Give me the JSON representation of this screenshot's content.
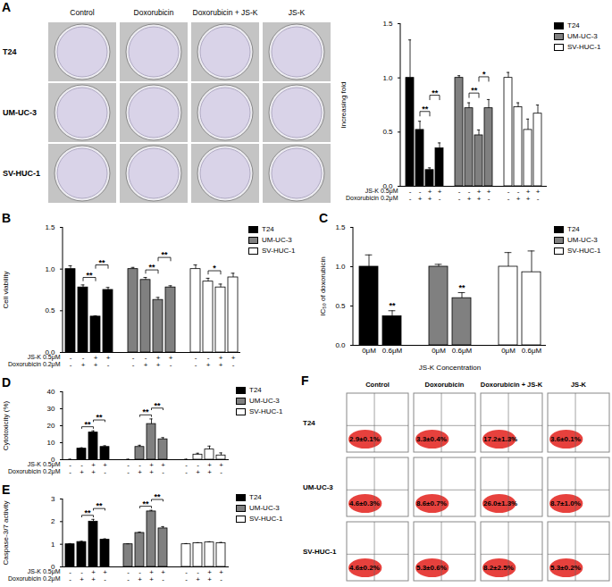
{
  "chart_data": [
    {
      "type": "bar",
      "y_label": "Increasing fold",
      "ylim": [
        0,
        1.5
      ],
      "yticks": [
        {
          "value": 0,
          "label": "0.0"
        },
        {
          "value": 0.5,
          "label": "0.5"
        },
        {
          "value": 1,
          "label": "1.0"
        },
        {
          "value": 1.5,
          "label": "1.5"
        }
      ],
      "legend": "right",
      "series": [
        {
          "name": "T24",
          "color": "#000000",
          "values": [
            1.0,
            0.52,
            0.15,
            0.35
          ],
          "errors": [
            0.35,
            0.08,
            0.02,
            0.05
          ]
        },
        {
          "name": "UM-UC-3",
          "color": "#808080",
          "values": [
            1.0,
            0.72,
            0.47,
            0.72
          ],
          "errors": [
            0.02,
            0.05,
            0.05,
            0.08
          ]
        },
        {
          "name": "SV-HUC-1",
          "color": "#ffffff",
          "values": [
            1.0,
            0.73,
            0.52,
            0.67
          ],
          "errors": [
            0.05,
            0.04,
            0.1,
            0.08
          ]
        }
      ],
      "x_rows": [
        {
          "label": "JS-K 0.5μM",
          "values": [
            "-",
            "-",
            "+",
            "+",
            "-",
            "-",
            "+",
            "+",
            "-",
            "-",
            "+",
            "+"
          ]
        },
        {
          "label": "Doxorubicin 0.2μM",
          "values": [
            "-",
            "+",
            "+",
            "-",
            "-",
            "+",
            "+",
            "-",
            "-",
            "+",
            "+",
            "-"
          ]
        }
      ],
      "annotations": [
        {
          "text": "**",
          "from": 1,
          "to": 2
        },
        {
          "text": "**",
          "from": 2,
          "to": 3
        },
        {
          "text": "**",
          "from": 5,
          "to": 6
        },
        {
          "text": "*",
          "from": 6,
          "to": 7
        }
      ]
    },
    {
      "type": "bar",
      "title": "B",
      "y_label": "Cell viability",
      "ylim": [
        0,
        1.5
      ],
      "yticks": [
        {
          "value": 0,
          "label": "0.0"
        },
        {
          "value": 0.5,
          "label": "0.5"
        },
        {
          "value": 1,
          "label": "1.0"
        },
        {
          "value": 1.5,
          "label": "1.5"
        }
      ],
      "legend": "right",
      "series": [
        {
          "name": "T24",
          "color": "#000000",
          "values": [
            1.0,
            0.78,
            0.43,
            0.75
          ],
          "errors": [
            0.04,
            0.03,
            0.01,
            0.03
          ]
        },
        {
          "name": "UM-UC-3",
          "color": "#808080",
          "values": [
            1.0,
            0.87,
            0.63,
            0.78
          ],
          "errors": [
            0.02,
            0.03,
            0.03,
            0.02
          ]
        },
        {
          "name": "SV-HUC-1",
          "color": "#ffffff",
          "values": [
            1.0,
            0.85,
            0.78,
            0.9
          ],
          "errors": [
            0.05,
            0.04,
            0.04,
            0.05
          ]
        }
      ],
      "x_rows": [
        {
          "label": "JS-K 0.5μM",
          "values": [
            "-",
            "-",
            "+",
            "+",
            "-",
            "-",
            "+",
            "+",
            "-",
            "-",
            "+",
            "+"
          ]
        },
        {
          "label": "Doxorubicin 0.2μM",
          "values": [
            "-",
            "+",
            "+",
            "-",
            "-",
            "+",
            "+",
            "-",
            "-",
            "+",
            "+",
            "-"
          ]
        }
      ],
      "annotations": [
        {
          "text": "**",
          "from": 1,
          "to": 2
        },
        {
          "text": "**",
          "from": 2,
          "to": 3
        },
        {
          "text": "**",
          "from": 5,
          "to": 6
        },
        {
          "text": "**",
          "from": 6,
          "to": 7
        },
        {
          "text": "*",
          "from": 9,
          "to": 10
        }
      ]
    },
    {
      "type": "bar",
      "title": "C",
      "y_label": "IC₅₀ of doxorubicin",
      "x_label": "JS-K Concentration",
      "ylim": [
        0,
        1.5
      ],
      "yticks": [
        {
          "value": 0,
          "label": "0.0"
        },
        {
          "value": 0.5,
          "label": "0.5"
        },
        {
          "value": 1,
          "label": "1.0"
        },
        {
          "value": 1.5,
          "label": "1.5"
        }
      ],
      "legend": "right",
      "categories": [
        "0μM",
        "0.6μM"
      ],
      "series": [
        {
          "name": "T24",
          "color": "#000000",
          "values": [
            1.0,
            0.37
          ],
          "errors": [
            0.15,
            0.07
          ]
        },
        {
          "name": "UM-UC-3",
          "color": "#808080",
          "values": [
            1.0,
            0.6
          ],
          "errors": [
            0.03,
            0.07
          ]
        },
        {
          "name": "SV-HUC-1",
          "color": "#ffffff",
          "values": [
            1.0,
            0.93
          ],
          "errors": [
            0.18,
            0.27
          ]
        }
      ],
      "annotations": [
        {
          "text": "**",
          "at": 1
        },
        {
          "text": "**",
          "at": 3
        }
      ]
    },
    {
      "type": "bar",
      "title": "D",
      "y_label": "Cytotoxicity (%)",
      "ylim": [
        0,
        40
      ],
      "yticks": [
        0,
        10,
        20,
        30,
        40
      ],
      "legend": "right",
      "series": [
        {
          "name": "T24",
          "color": "#000000",
          "values": [
            0,
            6.5,
            16,
            7.5
          ],
          "errors": [
            0.3,
            0.5,
            1,
            0.7
          ]
        },
        {
          "name": "UM-UC-3",
          "color": "#808080",
          "values": [
            0,
            7.5,
            21,
            12
          ],
          "errors": [
            0.3,
            1,
            3,
            1
          ]
        },
        {
          "name": "SV-HUC-1",
          "color": "#ffffff",
          "values": [
            0,
            3,
            6,
            2.5
          ],
          "errors": [
            0.3,
            0.8,
            2,
            1.5
          ]
        }
      ],
      "x_rows": [
        {
          "label": "JS-K 0.5μM",
          "values": [
            "-",
            "-",
            "+",
            "+",
            "-",
            "-",
            "+",
            "+",
            "-",
            "-",
            "+",
            "+"
          ]
        },
        {
          "label": "Doxorubicin 0.2μM",
          "values": [
            "-",
            "+",
            "+",
            "-",
            "-",
            "+",
            "+",
            "-",
            "-",
            "+",
            "+",
            "-"
          ]
        }
      ],
      "annotations": [
        {
          "text": "**",
          "from": 1,
          "to": 2
        },
        {
          "text": "**",
          "from": 2,
          "to": 3
        },
        {
          "text": "**",
          "from": 5,
          "to": 6
        },
        {
          "text": "**",
          "from": 6,
          "to": 7
        }
      ]
    },
    {
      "type": "bar",
      "title": "E",
      "y_label": "Caspase-3/7 activity",
      "ylim": [
        0,
        3
      ],
      "yticks": [
        0,
        1,
        2,
        3
      ],
      "legend": "right",
      "series": [
        {
          "name": "T24",
          "color": "#000000",
          "values": [
            1.0,
            1.1,
            2.0,
            1.2
          ],
          "errors": [
            0.03,
            0.03,
            0.1,
            0.04
          ]
        },
        {
          "name": "UM-UC-3",
          "color": "#808080",
          "values": [
            1.0,
            1.5,
            2.45,
            1.7
          ],
          "errors": [
            0.02,
            0.04,
            0.05,
            0.08
          ]
        },
        {
          "name": "SV-HUC-1",
          "color": "#ffffff",
          "values": [
            1.0,
            1.05,
            1.08,
            1.05
          ],
          "errors": [
            0.03,
            0.02,
            0.03,
            0.03
          ]
        }
      ],
      "x_rows": [
        {
          "label": "JS-K 0.5μM",
          "values": [
            "-",
            "-",
            "+",
            "+",
            "-",
            "-",
            "+",
            "+",
            "-",
            "-",
            "+",
            "+"
          ]
        },
        {
          "label": "Doxorubicin 0.2μM",
          "values": [
            "-",
            "+",
            "+",
            "-",
            "-",
            "+",
            "+",
            "-",
            "-",
            "+",
            "+",
            "-"
          ]
        }
      ],
      "annotations": [
        {
          "text": "**",
          "from": 1,
          "to": 2
        },
        {
          "text": "**",
          "from": 2,
          "to": 3
        },
        {
          "text": "**",
          "from": 5,
          "to": 6
        },
        {
          "text": "**",
          "from": 6,
          "to": 7
        }
      ]
    }
  ],
  "images": [
    {
      "title": "A",
      "columns": [
        "Control",
        "Doxorubicin",
        "Doxorubicin + JS-K",
        "JS-K"
      ],
      "rows": [
        "T24",
        "UM-UC-3",
        "SV-HUC-1"
      ]
    },
    {
      "title": "F",
      "columns": [
        "Control",
        "Doxorubicin",
        "Doxorubicin + JS-K",
        "JS-K"
      ],
      "rows": [
        "T24",
        "UM-UC-3",
        "SV-HUC-1"
      ],
      "cells": [
        [
          "2.9±0.1%",
          "3.3±0.4%",
          "17.2±1.3%",
          "3.6±0.1%"
        ],
        [
          "4.6±0.3%",
          "8.6±0.7%",
          "26.0±1.3%",
          "8.7±1.0%"
        ],
        [
          "4.6±0.2%",
          "5.3±0.6%",
          "8.2±2.5%",
          "5.3±0.2%"
        ]
      ]
    }
  ]
}
